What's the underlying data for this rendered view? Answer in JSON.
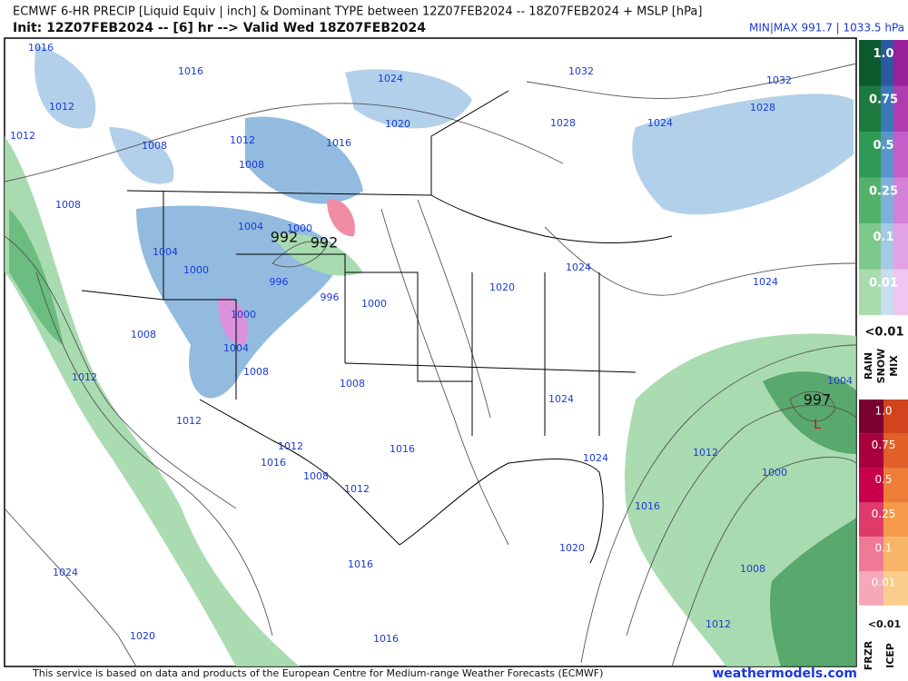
{
  "header": {
    "title_line1": "ECMWF 6-HR PRECIP [Liquid Equiv | inch] & Dominant TYPE between 12Z07FEB2024 -- 18Z07FEB2024 + MSLP [hPa]",
    "title_line2": "Init: 12Z07FEB2024 -- [6] hr --> Valid Wed 18Z07FEB2024",
    "minmax": "MIN|MAX 991.7 | 1033.5 hPa"
  },
  "map": {
    "isobar_labels": [
      "1016",
      "1016",
      "1024",
      "1032",
      "1032",
      "1012",
      "1020",
      "1028",
      "1024",
      "1028",
      "1012",
      "1008",
      "1012",
      "1016",
      "1008",
      "1008",
      "1004",
      "1000",
      "1004",
      "1000",
      "996",
      "996",
      "1000",
      "1020",
      "1024",
      "1024",
      "1000",
      "1004",
      "1008",
      "1012",
      "1008",
      "1008",
      "1024",
      "1004",
      "1012",
      "1012",
      "1016",
      "1024",
      "1012",
      "1000",
      "1016",
      "1008",
      "1012",
      "1016",
      "1020",
      "1016",
      "1024",
      "1008",
      "1020",
      "1016",
      "1012"
    ],
    "pressure_centers": [
      "992",
      "992",
      "997"
    ],
    "low_marker": "L"
  },
  "legend": {
    "rain_snow_mix_scale": [
      "1.0",
      "0.75",
      "0.5",
      "0.25",
      "0.1",
      "0.01"
    ],
    "rain_snow_mix_min": "<0.01",
    "rain_snow_mix_types": [
      "RAIN",
      "SNOW",
      "MIX"
    ],
    "frzr_icep_scale": [
      "1.0",
      "0.75",
      "0.5",
      "0.25",
      "0.1",
      "0.01"
    ],
    "frzr_icep_min": "<0.01",
    "frzr_icep_types": [
      "FRZR",
      "ICEP"
    ]
  },
  "footer": {
    "credit": "This service is based on data and products of the European Centre for Medium-range Weather Forecasts (ECMWF)",
    "site": "weathermodels.com"
  }
}
